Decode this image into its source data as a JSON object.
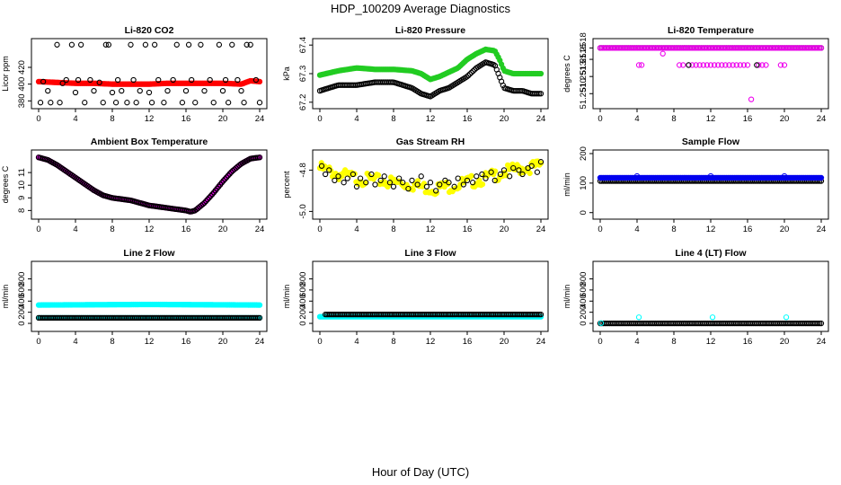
{
  "figure": {
    "title": "HDP_100209  Average Diagnostics",
    "xlabel": "Hour of Day (UTC)"
  },
  "colors": {
    "red": "#ff0000",
    "green": "#22cc22",
    "magenta": "#ee00ee",
    "blue": "#0000ee",
    "yellow": "#ffff00",
    "cyan": "#00ffff",
    "black": "#000000"
  },
  "chart_data": [
    {
      "type": "scatter",
      "title": "Li-820 CO2",
      "ylabel": "Licor ppm",
      "xlim": [
        0,
        24
      ],
      "ylim": [
        375,
        450
      ],
      "yticks": [
        380,
        400,
        420
      ],
      "xticks": [
        0,
        4,
        8,
        12,
        16,
        20,
        24
      ],
      "series": [
        {
          "name": "fill",
          "color": "red",
          "style": "dense",
          "mode": "filled",
          "x": [
            0,
            2,
            4,
            6,
            8,
            10,
            12,
            14,
            16,
            18,
            20,
            22,
            23,
            24
          ],
          "y": [
            403,
            402,
            401,
            401,
            400,
            400,
            400,
            401,
            401,
            401,
            401,
            400,
            404,
            403
          ]
        },
        {
          "name": "avg",
          "color": "black",
          "style": "points",
          "mode": "open",
          "x": [
            0.2,
            0.5,
            1.0,
            1.3,
            2.0,
            2.3,
            2.6,
            3.0,
            3.6,
            4.0,
            4.3,
            4.6,
            5.0,
            5.6,
            6.0,
            6.6,
            7.0,
            7.3,
            7.6,
            8.0,
            8.4,
            8.6,
            9.0,
            9.6,
            10.0,
            10.3,
            10.6,
            11.0,
            11.6,
            12.0,
            12.3,
            12.6,
            13.0,
            13.6,
            14.0,
            14.6,
            15.0,
            15.6,
            16.0,
            16.3,
            16.6,
            17.0,
            17.6,
            18.0,
            18.6,
            19.0,
            19.6,
            20.0,
            20.3,
            20.6,
            21.0,
            21.6,
            22.0,
            22.3,
            22.6,
            23.0,
            23.6,
            24.0
          ],
          "y": [
            378,
            403,
            392,
            378,
            447,
            378,
            401,
            405,
            447,
            390,
            405,
            447,
            378,
            405,
            392,
            402,
            378,
            447,
            447,
            390,
            378,
            405,
            392,
            378,
            447,
            405,
            378,
            392,
            447,
            390,
            378,
            447,
            405,
            378,
            392,
            405,
            447,
            378,
            392,
            447,
            405,
            378,
            447,
            392,
            405,
            378,
            447,
            392,
            405,
            378,
            447,
            405,
            392,
            378,
            447,
            447,
            405,
            378
          ]
        }
      ]
    },
    {
      "type": "scatter",
      "title": "Li-820 Pressure",
      "ylabel": "kPa",
      "xlim": [
        0,
        24
      ],
      "ylim": [
        67.19,
        67.41
      ],
      "yticks": [
        67.2,
        67.3,
        67.4
      ],
      "xticks": [
        0,
        4,
        8,
        12,
        16,
        20,
        24
      ],
      "series": [
        {
          "name": "fill",
          "color": "green",
          "style": "dense",
          "mode": "filled",
          "x": [
            0,
            2,
            4,
            6,
            8,
            10,
            11,
            12,
            13,
            14,
            15,
            16,
            17,
            18,
            19,
            19.5,
            20,
            21,
            22,
            23,
            24
          ],
          "y": [
            67.295,
            67.31,
            67.32,
            67.315,
            67.315,
            67.31,
            67.3,
            67.28,
            67.29,
            67.305,
            67.32,
            67.35,
            67.37,
            67.385,
            67.38,
            67.35,
            67.31,
            67.3,
            67.3,
            67.3,
            67.3
          ]
        },
        {
          "name": "avg",
          "color": "black",
          "style": "dense",
          "mode": "open",
          "x": [
            0,
            2,
            4,
            6,
            8,
            10,
            11,
            12,
            13,
            14,
            15,
            16,
            17,
            18,
            19,
            19.5,
            20,
            21,
            22,
            23,
            24
          ],
          "y": [
            67.24,
            67.26,
            67.26,
            67.27,
            67.27,
            67.25,
            67.23,
            67.22,
            67.24,
            67.25,
            67.27,
            67.29,
            67.32,
            67.34,
            67.33,
            67.29,
            67.25,
            67.24,
            67.24,
            67.23,
            67.23
          ]
        }
      ]
    },
    {
      "type": "scatter",
      "title": "Li-820 Temperature",
      "ylabel": "degrees C",
      "xlim": [
        0,
        24
      ],
      "ylim": [
        51.2508,
        51.2519
      ],
      "yticks": [
        51.251,
        51.2513,
        51.2516,
        51.2518
      ],
      "ytick_labels": [
        "51.2510",
        "51.2513",
        "51.2516",
        "51.2518"
      ],
      "xticks": [
        0,
        4,
        8,
        12,
        16,
        20,
        24
      ],
      "series": [
        {
          "name": "upper",
          "color": "black",
          "style": "dense",
          "mode": "open",
          "x": [
            0,
            24
          ],
          "y": [
            51.2518,
            51.2518
          ]
        },
        {
          "name": "upper-m",
          "color": "magenta",
          "style": "dense",
          "mode": "open",
          "x": [
            0,
            24
          ],
          "y": [
            51.2518,
            51.2518
          ]
        },
        {
          "name": "low",
          "color": "magenta",
          "style": "points",
          "mode": "open",
          "x": [
            4.2,
            4.5,
            6.8,
            8.6,
            9.0,
            9.6,
            10.0,
            10.4,
            10.8,
            11.2,
            11.6,
            12.0,
            12.4,
            12.8,
            13.2,
            13.6,
            14.0,
            14.4,
            14.8,
            15.2,
            15.6,
            16.0,
            16.4,
            17.2,
            17.6,
            18.0,
            19.6,
            20.0
          ],
          "y": [
            51.2515,
            51.2515,
            51.2517,
            51.2515,
            51.2515,
            51.2515,
            51.2515,
            51.2515,
            51.2515,
            51.2515,
            51.2515,
            51.2515,
            51.2515,
            51.2515,
            51.2515,
            51.2515,
            51.2515,
            51.2515,
            51.2515,
            51.2515,
            51.2515,
            51.2515,
            51.2509,
            51.2515,
            51.2515,
            51.2515,
            51.2515,
            51.2515
          ]
        },
        {
          "name": "low-k",
          "color": "black",
          "style": "points",
          "mode": "open",
          "x": [
            9.6,
            17.0
          ],
          "y": [
            51.2515,
            51.2515
          ]
        }
      ]
    },
    {
      "type": "scatter",
      "title": "Ambient Box Temperature",
      "ylabel": "degrees C",
      "xlim": [
        0,
        24
      ],
      "ylim": [
        7.6,
        12.5
      ],
      "yticks": [
        8,
        9,
        10,
        11
      ],
      "xticks": [
        0,
        4,
        8,
        12,
        16,
        20,
        24
      ],
      "series": [
        {
          "name": "fill",
          "color": "magenta",
          "style": "dense",
          "mode": "filled",
          "x": [
            0,
            1,
            2,
            3,
            4,
            5,
            6,
            7,
            8,
            9,
            10,
            11,
            12,
            13,
            14,
            15,
            16,
            16.5,
            17,
            18,
            19,
            20,
            21,
            22,
            23,
            24
          ],
          "y": [
            12.2,
            12.0,
            11.6,
            11.1,
            10.6,
            10.1,
            9.6,
            9.2,
            9.0,
            8.9,
            8.8,
            8.6,
            8.4,
            8.3,
            8.2,
            8.1,
            8.0,
            7.9,
            8.0,
            8.6,
            9.4,
            10.3,
            11.1,
            11.7,
            12.1,
            12.2
          ]
        },
        {
          "name": "avg",
          "color": "black",
          "style": "dense",
          "mode": "open",
          "x": [
            0,
            1,
            2,
            3,
            4,
            5,
            6,
            7,
            8,
            9,
            10,
            11,
            12,
            13,
            14,
            15,
            16,
            16.5,
            17,
            18,
            19,
            20,
            21,
            22,
            23,
            24
          ],
          "y": [
            12.2,
            12.0,
            11.6,
            11.1,
            10.6,
            10.1,
            9.6,
            9.2,
            9.0,
            8.9,
            8.8,
            8.6,
            8.4,
            8.3,
            8.2,
            8.1,
            8.0,
            7.9,
            8.0,
            8.6,
            9.4,
            10.3,
            11.1,
            11.7,
            12.1,
            12.2
          ]
        }
      ]
    },
    {
      "type": "scatter",
      "title": "Gas Stream RH",
      "ylabel": "percent",
      "xlim": [
        0,
        24
      ],
      "ylim": [
        -5.02,
        -4.72
      ],
      "yticks": [
        -5.0,
        -4.8
      ],
      "ytick_labels": [
        "-5.0",
        "-4.8"
      ],
      "xticks": [
        0,
        4,
        8,
        12,
        16,
        20,
        24
      ],
      "series": [
        {
          "name": "fill",
          "color": "yellow",
          "style": "dense",
          "mode": "filled",
          "spread": 10,
          "x": [
            0,
            2,
            4,
            6,
            8,
            10,
            12,
            14,
            16,
            18,
            20,
            22,
            24
          ],
          "y": [
            -4.79,
            -4.82,
            -4.84,
            -4.85,
            -4.86,
            -4.87,
            -4.89,
            -4.88,
            -4.86,
            -4.84,
            -4.81,
            -4.79,
            -4.78
          ]
        },
        {
          "name": "avg",
          "color": "black",
          "style": "points",
          "mode": "open",
          "x": [
            0.2,
            0.6,
            1.0,
            1.6,
            2.0,
            2.6,
            3.0,
            3.6,
            4.0,
            4.4,
            5.0,
            5.6,
            6.0,
            6.6,
            7.0,
            7.6,
            8.0,
            8.6,
            9.0,
            9.6,
            10.0,
            10.6,
            11.0,
            11.6,
            12.0,
            12.6,
            13.0,
            13.6,
            14.0,
            14.6,
            15.0,
            15.6,
            16.0,
            16.6,
            17.0,
            17.6,
            18.0,
            18.6,
            19.0,
            19.6,
            20.0,
            20.6,
            21.0,
            21.6,
            22.0,
            22.6,
            23.0,
            23.6,
            24.0
          ],
          "y": [
            -4.78,
            -4.82,
            -4.8,
            -4.85,
            -4.83,
            -4.86,
            -4.84,
            -4.82,
            -4.88,
            -4.84,
            -4.86,
            -4.82,
            -4.87,
            -4.85,
            -4.83,
            -4.86,
            -4.88,
            -4.84,
            -4.86,
            -4.89,
            -4.85,
            -4.87,
            -4.83,
            -4.88,
            -4.86,
            -4.9,
            -4.87,
            -4.85,
            -4.86,
            -4.88,
            -4.84,
            -4.87,
            -4.85,
            -4.86,
            -4.83,
            -4.82,
            -4.84,
            -4.81,
            -4.85,
            -4.82,
            -4.8,
            -4.83,
            -4.79,
            -4.8,
            -4.82,
            -4.79,
            -4.78,
            -4.81,
            -4.76
          ]
        }
      ]
    },
    {
      "type": "scatter",
      "title": "Sample Flow",
      "ylabel": "ml/min",
      "xlim": [
        0,
        24
      ],
      "ylim": [
        -10,
        200
      ],
      "yticks": [
        0,
        100,
        200
      ],
      "xticks": [
        0,
        4,
        8,
        12,
        16,
        20,
        24
      ],
      "series": [
        {
          "name": "avg",
          "color": "black",
          "style": "dense",
          "mode": "open",
          "x": [
            0,
            24
          ],
          "y": [
            107,
            107
          ]
        },
        {
          "name": "fill",
          "color": "blue",
          "style": "dense",
          "mode": "filled",
          "x": [
            0,
            24
          ],
          "y": [
            118,
            118
          ]
        },
        {
          "name": "spikes",
          "color": "blue",
          "style": "points",
          "mode": "open",
          "x": [
            4.0,
            12.0,
            20.0
          ],
          "y": [
            124,
            124,
            124
          ]
        }
      ]
    },
    {
      "type": "scatter",
      "title": "Line 2 Flow",
      "ylabel": "ml/min",
      "xlim": [
        0,
        24
      ],
      "ylim": [
        -80,
        1050
      ],
      "yticks": [
        0,
        200,
        400,
        600,
        800
      ],
      "xticks": [
        0,
        4,
        8,
        12,
        16,
        20,
        24
      ],
      "series": [
        {
          "name": "cyan-fill",
          "color": "cyan",
          "style": "dense",
          "mode": "filled",
          "x": [
            0,
            6,
            12,
            18,
            24
          ],
          "y": [
            330,
            335,
            340,
            335,
            330
          ]
        },
        {
          "name": "cyan-low",
          "color": "cyan",
          "style": "dense",
          "mode": "filled",
          "x": [
            0,
            24
          ],
          "y": [
            100,
            100
          ]
        },
        {
          "name": "avg",
          "color": "black",
          "style": "dense",
          "mode": "open",
          "x": [
            0,
            24
          ],
          "y": [
            100,
            100
          ]
        }
      ]
    },
    {
      "type": "scatter",
      "title": "Line 3 Flow",
      "ylabel": "ml/min",
      "xlim": [
        0,
        24
      ],
      "ylim": [
        -80,
        1050
      ],
      "yticks": [
        0,
        200,
        400,
        600,
        800
      ],
      "xticks": [
        0,
        4,
        8,
        12,
        16,
        20,
        24
      ],
      "series": [
        {
          "name": "cyan-fill",
          "color": "cyan",
          "style": "dense",
          "mode": "filled",
          "x": [
            0,
            24
          ],
          "y": [
            120,
            120
          ]
        },
        {
          "name": "avg",
          "color": "black",
          "style": "dense",
          "mode": "open",
          "x": [
            0.6,
            24
          ],
          "y": [
            160,
            160
          ]
        }
      ]
    },
    {
      "type": "scatter",
      "title": "Line 4 (LT) Flow",
      "ylabel": "ml/min",
      "xlim": [
        0,
        24
      ],
      "ylim": [
        -80,
        1050
      ],
      "yticks": [
        0,
        200,
        400,
        600,
        800
      ],
      "xticks": [
        0,
        4,
        8,
        12,
        16,
        20,
        24
      ],
      "series": [
        {
          "name": "avg",
          "color": "black",
          "style": "dense",
          "mode": "open",
          "x": [
            0,
            24
          ],
          "y": [
            0,
            0
          ]
        },
        {
          "name": "cyan-spikes",
          "color": "cyan",
          "style": "points",
          "mode": "open",
          "x": [
            0.1,
            4.2,
            12.2,
            20.2
          ],
          "y": [
            5,
            110,
            110,
            110
          ]
        }
      ]
    }
  ]
}
